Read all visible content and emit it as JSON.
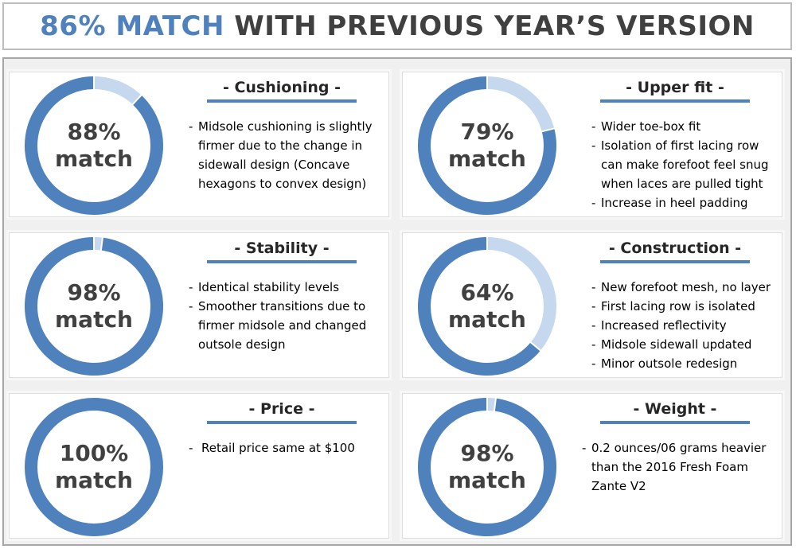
{
  "header": {
    "highlight": "86% MATCH",
    "rest": "WITH PREVIOUS YEAR’S VERSION"
  },
  "colors": {
    "accent": "#4f81bd",
    "ring_remainder": "#c6d8ee",
    "text_dark": "#404040"
  },
  "chart_data": [
    {
      "type": "pie",
      "title": "- Cushioning -",
      "value": 88,
      "center_value": "88%",
      "center_label": "match",
      "bullets": [
        "Midsole cushioning is slightly",
        "firmer due to the change in",
        "sidewall design (Concave",
        "hexagons to convex design)"
      ]
    },
    {
      "type": "pie",
      "title": "- Upper fit -",
      "value": 79,
      "center_value": "79%",
      "center_label": "match",
      "bullets": [
        "Wider toe-box fit",
        "Isolation of first lacing row",
        "can make forefoot feel snug",
        "when laces are pulled tight",
        "Increase in heel padding"
      ]
    },
    {
      "type": "pie",
      "title": "- Stability -",
      "value": 98,
      "center_value": "98%",
      "center_label": "match",
      "bullets": [
        "Identical stability levels",
        "Smoother transitions due to",
        "firmer midsole and changed",
        "outsole design"
      ]
    },
    {
      "type": "pie",
      "title": "- Construction -",
      "value": 64,
      "center_value": "64%",
      "center_label": "match",
      "bullets": [
        "New forefoot mesh, no layer",
        "First lacing row is isolated",
        "Increased reflectivity",
        "Midsole sidewall updated",
        "Minor outsole redesign"
      ]
    },
    {
      "type": "pie",
      "title": "- Price -",
      "value": 100,
      "center_value": "100%",
      "center_label": "match",
      "bullets": [
        "Retail price same at $100"
      ]
    },
    {
      "type": "pie",
      "title": "- Weight -",
      "value": 98,
      "center_value": "98%",
      "center_label": "match",
      "bullets": [
        "0.2 ounces/06 grams heavier",
        "than the 2016 Fresh Foam",
        "Zante V2"
      ]
    }
  ]
}
